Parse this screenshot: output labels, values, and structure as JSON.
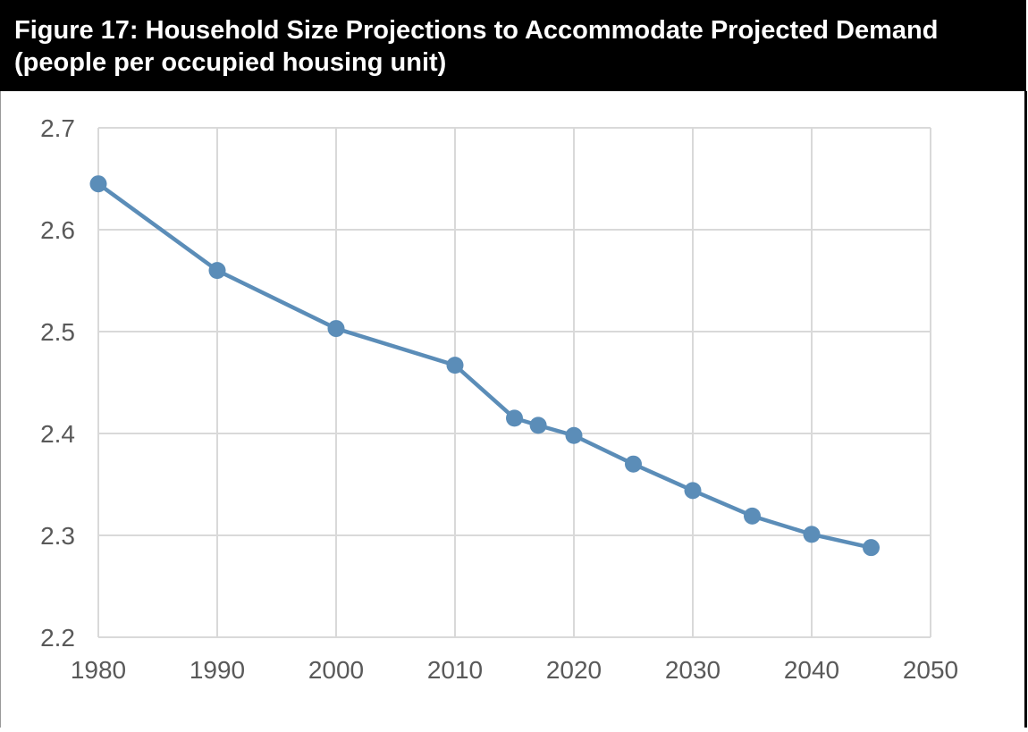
{
  "title": "Figure 17: Household Size Projections to Accommodate Projected Demand (people per occupied housing unit)",
  "colors": {
    "series": "#5b8db8",
    "grid": "#d9d9d9",
    "tick_text": "#595959",
    "title_bg": "#000000",
    "title_text": "#ffffff"
  },
  "chart_data": {
    "type": "line",
    "title": "Figure 17: Household Size Projections to Accommodate Projected Demand (people per occupied housing unit)",
    "xlabel": "",
    "ylabel": "",
    "xlim": [
      1980,
      2050
    ],
    "ylim": [
      2.2,
      2.7
    ],
    "xticks": [
      "1980",
      "1990",
      "2000",
      "2010",
      "2020",
      "2030",
      "2040",
      "2050"
    ],
    "yticks": [
      "2.2",
      "2.3",
      "2.4",
      "2.5",
      "2.6",
      "2.7"
    ],
    "grid": true,
    "legend": "none",
    "series": [
      {
        "x": [
          1980,
          1990,
          2000,
          2010,
          2015,
          2017,
          2020,
          2025,
          2030,
          2035,
          2040,
          2045
        ],
        "y": [
          2.645,
          2.56,
          2.503,
          2.467,
          2.415,
          2.408,
          2.398,
          2.37,
          2.344,
          2.319,
          2.301,
          2.288
        ]
      }
    ]
  }
}
